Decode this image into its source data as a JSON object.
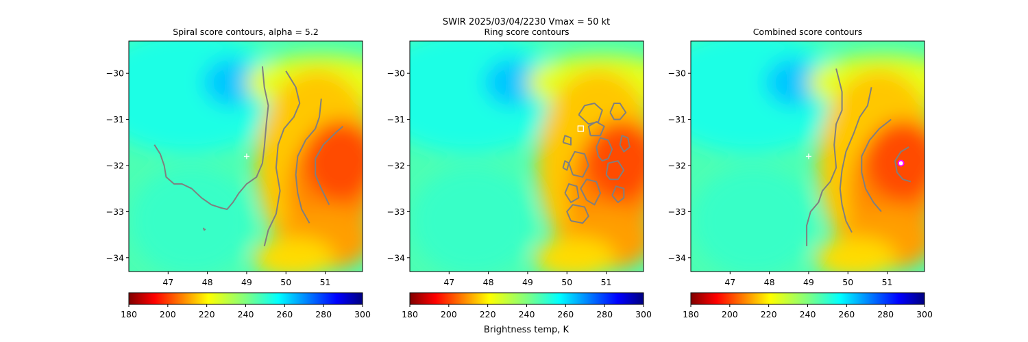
{
  "suptitle_line1": "SWIR  2025/03/04/2230    Vmax = 50 kt",
  "colorbar": {
    "label": "Brightness temp, K",
    "ticks": [
      180,
      200,
      220,
      240,
      260,
      280,
      300
    ],
    "range": [
      180,
      300
    ],
    "colormap": "jet_r"
  },
  "colors": {
    "contour": "#7f7f7f",
    "marker_plus": "#ffffff",
    "marker_square": "#ffffff",
    "marker_circle_edge": "#ff00ff"
  },
  "chart_data": [
    {
      "type": "heatmap",
      "title": "Spiral score contours, alpha =  5.2",
      "x_ticks": [
        47,
        48,
        49,
        50,
        51
      ],
      "y_ticks": [
        -30,
        -31,
        -32,
        -33,
        -34
      ],
      "xlim": [
        46.0,
        51.95
      ],
      "ylim": [
        -34.3,
        -29.3
      ],
      "marker": {
        "shape": "plus",
        "lon": 49.0,
        "lat": -31.8
      },
      "contours": [
        [
          [
            46.65,
            -31.55
          ],
          [
            46.8,
            -31.75
          ],
          [
            46.9,
            -32.0
          ],
          [
            46.95,
            -32.25
          ],
          [
            47.15,
            -32.4
          ],
          [
            47.35,
            -32.4
          ],
          [
            47.6,
            -32.5
          ],
          [
            47.85,
            -32.7
          ],
          [
            48.1,
            -32.85
          ],
          [
            48.35,
            -32.92
          ],
          [
            48.5,
            -32.95
          ],
          [
            48.65,
            -32.8
          ],
          [
            48.8,
            -32.6
          ],
          [
            49.0,
            -32.4
          ],
          [
            49.25,
            -32.25
          ],
          [
            49.4,
            -31.95
          ],
          [
            49.45,
            -31.6
          ],
          [
            49.5,
            -31.1
          ],
          [
            49.55,
            -30.7
          ],
          [
            49.45,
            -30.3
          ],
          [
            49.4,
            -29.85
          ]
        ],
        [
          [
            49.45,
            -33.75
          ],
          [
            49.55,
            -33.4
          ],
          [
            49.75,
            -33.05
          ],
          [
            49.85,
            -32.55
          ],
          [
            49.75,
            -32.05
          ],
          [
            49.8,
            -31.55
          ],
          [
            49.95,
            -31.2
          ],
          [
            50.2,
            -30.95
          ],
          [
            50.35,
            -30.65
          ],
          [
            50.25,
            -30.3
          ],
          [
            50.0,
            -29.95
          ]
        ],
        [
          [
            50.6,
            -33.25
          ],
          [
            50.4,
            -32.95
          ],
          [
            50.3,
            -32.6
          ],
          [
            50.25,
            -32.2
          ],
          [
            50.3,
            -31.8
          ],
          [
            50.5,
            -31.45
          ],
          [
            50.75,
            -31.2
          ],
          [
            50.85,
            -30.95
          ],
          [
            50.9,
            -30.55
          ]
        ],
        [
          [
            51.1,
            -32.85
          ],
          [
            50.9,
            -32.5
          ],
          [
            50.75,
            -32.2
          ],
          [
            50.75,
            -31.85
          ],
          [
            50.95,
            -31.55
          ],
          [
            51.25,
            -31.3
          ],
          [
            51.45,
            -31.15
          ]
        ],
        [
          [
            47.9,
            -33.35
          ],
          [
            47.92,
            -33.4
          ],
          [
            47.95,
            -33.38
          ]
        ]
      ]
    },
    {
      "type": "heatmap",
      "title": "Ring score contours",
      "x_ticks": [
        47,
        48,
        49,
        50,
        51
      ],
      "y_ticks": [
        -30,
        -31,
        -32,
        -33,
        -34
      ],
      "xlim": [
        46.0,
        51.95
      ],
      "ylim": [
        -34.3,
        -29.3
      ],
      "marker": {
        "shape": "square",
        "lon": 50.35,
        "lat": -31.2
      },
      "contours": [
        [
          [
            50.8,
            -31.8
          ],
          [
            50.75,
            -31.6
          ],
          [
            50.85,
            -31.4
          ],
          [
            51.05,
            -31.45
          ],
          [
            51.15,
            -31.65
          ],
          [
            51.05,
            -31.85
          ],
          [
            50.9,
            -31.9
          ],
          [
            50.8,
            -31.8
          ]
        ],
        [
          [
            50.15,
            -32.2
          ],
          [
            50.05,
            -31.95
          ],
          [
            50.2,
            -31.7
          ],
          [
            50.45,
            -31.75
          ],
          [
            50.55,
            -32.0
          ],
          [
            50.4,
            -32.25
          ],
          [
            50.15,
            -32.2
          ]
        ],
        [
          [
            50.5,
            -32.75
          ],
          [
            50.35,
            -32.5
          ],
          [
            50.5,
            -32.3
          ],
          [
            50.75,
            -32.35
          ],
          [
            50.85,
            -32.6
          ],
          [
            50.7,
            -32.85
          ],
          [
            50.5,
            -32.75
          ]
        ],
        [
          [
            51.0,
            -32.2
          ],
          [
            51.05,
            -31.95
          ],
          [
            51.3,
            -31.9
          ],
          [
            51.45,
            -32.1
          ],
          [
            51.3,
            -32.3
          ],
          [
            51.1,
            -32.3
          ],
          [
            51.0,
            -32.2
          ]
        ],
        [
          [
            50.3,
            -30.9
          ],
          [
            50.45,
            -30.7
          ],
          [
            50.7,
            -30.65
          ],
          [
            50.9,
            -30.8
          ],
          [
            50.8,
            -31.05
          ],
          [
            50.55,
            -31.1
          ],
          [
            50.3,
            -30.9
          ]
        ],
        [
          [
            51.1,
            -30.85
          ],
          [
            51.2,
            -30.65
          ],
          [
            51.35,
            -30.65
          ],
          [
            51.5,
            -30.85
          ],
          [
            51.35,
            -31.0
          ],
          [
            51.2,
            -31.0
          ],
          [
            51.1,
            -30.85
          ]
        ],
        [
          [
            49.95,
            -32.6
          ],
          [
            50.05,
            -32.4
          ],
          [
            50.25,
            -32.45
          ],
          [
            50.3,
            -32.7
          ],
          [
            50.1,
            -32.8
          ],
          [
            49.95,
            -32.6
          ]
        ],
        [
          [
            50.1,
            -33.2
          ],
          [
            50.0,
            -33.0
          ],
          [
            50.15,
            -32.85
          ],
          [
            50.45,
            -32.9
          ],
          [
            50.55,
            -33.1
          ],
          [
            50.4,
            -33.25
          ],
          [
            50.1,
            -33.2
          ]
        ],
        [
          [
            50.6,
            -31.35
          ],
          [
            50.55,
            -31.15
          ],
          [
            50.75,
            -31.05
          ],
          [
            50.95,
            -31.15
          ],
          [
            50.85,
            -31.35
          ],
          [
            50.6,
            -31.35
          ]
        ],
        [
          [
            51.35,
            -31.55
          ],
          [
            51.4,
            -31.35
          ],
          [
            51.55,
            -31.4
          ],
          [
            51.6,
            -31.6
          ],
          [
            51.45,
            -31.7
          ],
          [
            51.35,
            -31.55
          ]
        ],
        [
          [
            51.15,
            -32.65
          ],
          [
            51.25,
            -32.45
          ],
          [
            51.45,
            -32.5
          ],
          [
            51.45,
            -32.7
          ],
          [
            51.3,
            -32.8
          ],
          [
            51.15,
            -32.65
          ]
        ],
        [
          [
            49.9,
            -31.5
          ],
          [
            49.95,
            -31.35
          ],
          [
            50.1,
            -31.4
          ],
          [
            50.1,
            -31.55
          ],
          [
            49.9,
            -31.5
          ]
        ],
        [
          [
            49.9,
            -32.05
          ],
          [
            49.95,
            -31.9
          ],
          [
            50.05,
            -31.95
          ],
          [
            50.0,
            -32.1
          ],
          [
            49.9,
            -32.05
          ]
        ]
      ]
    },
    {
      "type": "heatmap",
      "title": "Combined score contours",
      "x_ticks": [
        47,
        48,
        49,
        50,
        51
      ],
      "y_ticks": [
        -30,
        -31,
        -32,
        -33,
        -34
      ],
      "xlim": [
        46.0,
        51.95
      ],
      "ylim": [
        -34.3,
        -29.3
      ],
      "marker": {
        "shape": "plus",
        "lon": 49.0,
        "lat": -31.8
      },
      "marker2": {
        "shape": "circle",
        "lon": 51.35,
        "lat": -31.95
      },
      "contours": [
        [
          [
            48.95,
            -33.75
          ],
          [
            48.95,
            -33.3
          ],
          [
            49.05,
            -33.0
          ],
          [
            49.25,
            -32.8
          ],
          [
            49.35,
            -32.55
          ],
          [
            49.55,
            -32.35
          ],
          [
            49.7,
            -32.05
          ],
          [
            49.65,
            -31.55
          ],
          [
            49.7,
            -31.1
          ],
          [
            49.85,
            -30.8
          ],
          [
            49.85,
            -30.4
          ],
          [
            49.7,
            -29.9
          ]
        ],
        [
          [
            50.1,
            -33.45
          ],
          [
            49.95,
            -33.2
          ],
          [
            49.85,
            -32.85
          ],
          [
            49.8,
            -32.5
          ],
          [
            49.85,
            -32.1
          ],
          [
            49.95,
            -31.7
          ],
          [
            50.15,
            -31.3
          ],
          [
            50.3,
            -30.95
          ],
          [
            50.5,
            -30.7
          ],
          [
            50.6,
            -30.3
          ]
        ],
        [
          [
            50.85,
            -33.0
          ],
          [
            50.65,
            -32.8
          ],
          [
            50.45,
            -32.5
          ],
          [
            50.35,
            -32.15
          ],
          [
            50.35,
            -31.8
          ],
          [
            50.55,
            -31.45
          ],
          [
            50.8,
            -31.2
          ],
          [
            51.1,
            -31.0
          ]
        ],
        [
          [
            51.6,
            -32.35
          ],
          [
            51.4,
            -32.3
          ],
          [
            51.25,
            -32.15
          ],
          [
            51.2,
            -31.9
          ],
          [
            51.35,
            -31.7
          ],
          [
            51.55,
            -31.6
          ]
        ]
      ]
    }
  ]
}
